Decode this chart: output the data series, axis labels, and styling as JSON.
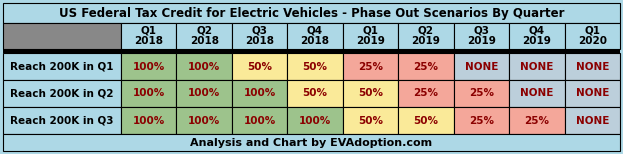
{
  "title": "US Federal Tax Credit for Electric Vehicles - Phase Out Scenarios By Quarter",
  "footer": "Analysis and Chart by EVAdoption.com",
  "col_headers": [
    "Q1\n2018",
    "Q2\n2018",
    "Q3\n2018",
    "Q4\n2018",
    "Q1\n2019",
    "Q2\n2019",
    "Q3\n2019",
    "Q4\n2019",
    "Q1\n2020"
  ],
  "row_labels": [
    "Reach 200K in Q1",
    "Reach 200K in Q2",
    "Reach 200K in Q3"
  ],
  "table_data": [
    [
      "100%",
      "100%",
      "50%",
      "50%",
      "25%",
      "25%",
      "NONE",
      "NONE",
      "NONE"
    ],
    [
      "100%",
      "100%",
      "100%",
      "50%",
      "50%",
      "25%",
      "25%",
      "NONE",
      "NONE"
    ],
    [
      "100%",
      "100%",
      "100%",
      "100%",
      "50%",
      "50%",
      "25%",
      "25%",
      "NONE"
    ]
  ],
  "cell_colors": [
    [
      "#9DC38C",
      "#9DC38C",
      "#FAEA99",
      "#FAEA99",
      "#F4A79A",
      "#F4A79A",
      "#BCCFDB",
      "#BCCFDB",
      "#BCCFDB"
    ],
    [
      "#9DC38C",
      "#9DC38C",
      "#9DC38C",
      "#FAEA99",
      "#FAEA99",
      "#F4A79A",
      "#F4A79A",
      "#BCCFDB",
      "#BCCFDB"
    ],
    [
      "#9DC38C",
      "#9DC38C",
      "#9DC38C",
      "#9DC38C",
      "#FAEA99",
      "#FAEA99",
      "#F4A79A",
      "#F4A79A",
      "#BCCFDB"
    ]
  ],
  "bg_color": "#ADD8E6",
  "header_bg": "#ADD8E6",
  "row_label_bg": "#ADD8E6",
  "gray_corner": "#888888",
  "border_color": "#000000",
  "cell_text_color": "#8B0000",
  "header_text_color": "#000000",
  "title_fontsize": 8.5,
  "cell_fontsize": 7.5,
  "header_fontsize": 7.5,
  "row_label_fontsize": 7.5,
  "footer_fontsize": 8
}
